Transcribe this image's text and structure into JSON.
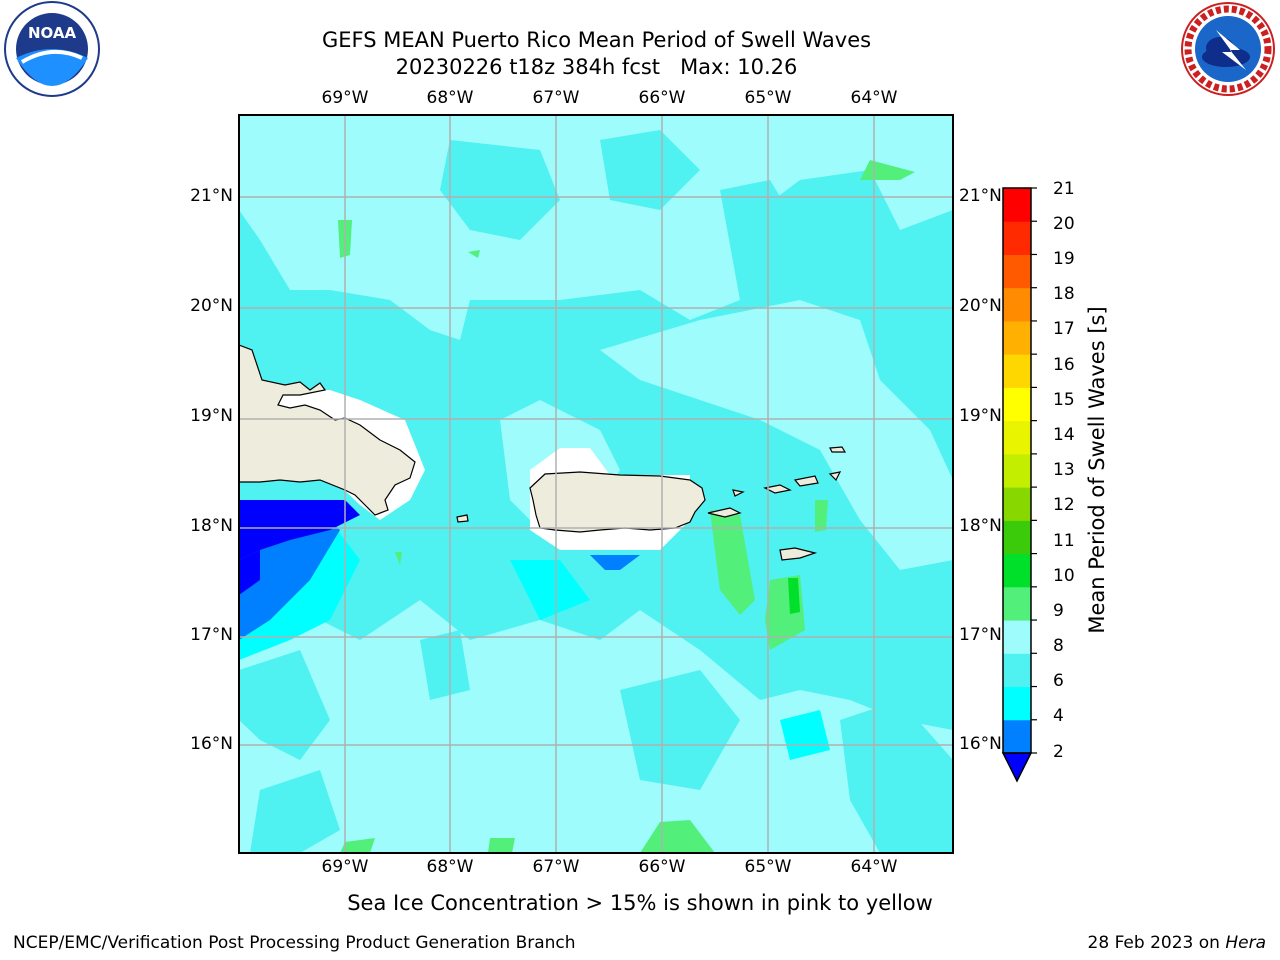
{
  "title": {
    "line1": "GEFS MEAN Puerto Rico Mean Period of Swell Waves",
    "line2": "20230226 t18z 384h fcst   Max: 10.26"
  },
  "logos": {
    "left": "noaa-logo",
    "left_text": "NOAA",
    "right": "nws-logo",
    "right_text": "NATIONAL WEATHER SERVICE"
  },
  "map": {
    "lon_labels": [
      "69°W",
      "68°W",
      "67°W",
      "66°W",
      "65°W",
      "64°W"
    ],
    "lat_labels": [
      "21°N",
      "20°N",
      "19°N",
      "18°N",
      "17°N",
      "16°N"
    ],
    "lon_range": [
      -70.0,
      -63.25
    ],
    "lat_range": [
      15.0,
      21.75
    ],
    "grid": true,
    "colors": {
      "land": "#eeecdc",
      "ocean_base": "#4ff1f1",
      "light_cyan": "#9efcfc",
      "cyan": "#00ffff",
      "blue_mid": "#0080ff",
      "blue_dark": "#0000ff",
      "green_light": "#52f07a",
      "green": "#00e02a",
      "grid": "#b0b0b0"
    }
  },
  "colorbar": {
    "label": "Mean Period of Swell Waves [s]",
    "ticks": [
      "21",
      "20",
      "19",
      "18",
      "17",
      "16",
      "15",
      "14",
      "13",
      "12",
      "11",
      "10",
      "9",
      "8",
      "6",
      "4",
      "2"
    ],
    "colors": [
      "#0000ff",
      "#0080ff",
      "#00ffff",
      "#4ff1f1",
      "#9efcfc",
      "#52f07a",
      "#00e02a",
      "#3ccb0a",
      "#88d800",
      "#c4ee00",
      "#e8f400",
      "#ffff00",
      "#ffd700",
      "#ffb000",
      "#ff8c00",
      "#ff5a00",
      "#ff2a00",
      "#ff0000"
    ]
  },
  "caption": "Sea Ice Concentration > 15% is shown in pink to yellow",
  "footer": {
    "left": "NCEP/EMC/Verification Post Processing Product Generation Branch",
    "right_date": "28 Feb 2023 on ",
    "right_host": "Hera"
  }
}
